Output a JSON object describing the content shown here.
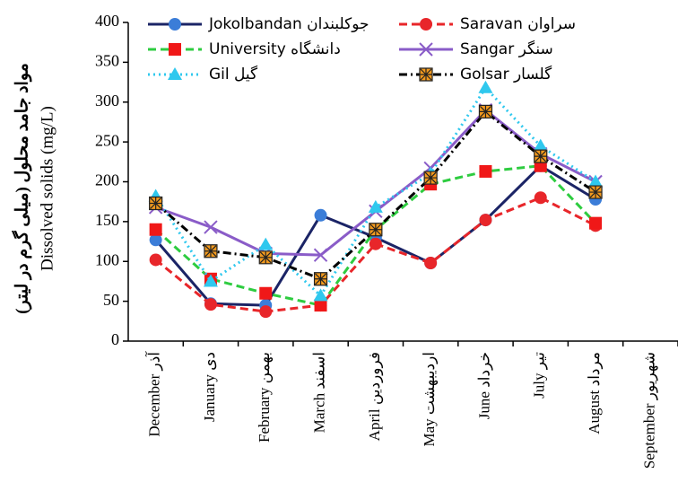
{
  "chart_data": {
    "type": "line",
    "ylabel_fa": "مواد جامد محلول (میلی گرم در لیتر)",
    "ylabel": "Dissolved solids (mg/L)",
    "categories": [
      "December آذر",
      "January دی",
      "February بهمن",
      "March اسفند",
      "April فروردین",
      "May اردیبهشت",
      "June خرداد",
      "July تیر",
      "August مرداد",
      "September شهریور"
    ],
    "ylim": [
      0,
      400
    ],
    "yticks": [
      0,
      50,
      100,
      150,
      200,
      250,
      300,
      350,
      400
    ],
    "series": [
      {
        "name": "Jokolbandan جوکلبندان",
        "color": "#1b2466",
        "marker": "circle",
        "marker_color": "#3b7dd8",
        "dash": "solid",
        "values": [
          127,
          47,
          45,
          158,
          130,
          98,
          152,
          220,
          178,
          null
        ]
      },
      {
        "name": "Saravan سراوان",
        "color": "#e8262a",
        "marker": "circle",
        "marker_color": "#e8262a",
        "dash": "dashed",
        "values": [
          102,
          46,
          37,
          45,
          122,
          98,
          152,
          180,
          145,
          null
        ]
      },
      {
        "name": "University دانشگاه",
        "color": "#2ecc40",
        "marker": "square",
        "marker_color": "#f01818",
        "dash": "dashed",
        "values": [
          140,
          78,
          60,
          45,
          140,
          197,
          213,
          220,
          148,
          null
        ]
      },
      {
        "name": "Sangar سنگر",
        "color": "#8a5cc8",
        "marker": "x",
        "marker_color": "#8a5cc8",
        "dash": "solid",
        "values": [
          168,
          143,
          110,
          108,
          163,
          217,
          290,
          235,
          200,
          null
        ]
      },
      {
        "name": "Gil گیل",
        "color": "#2fc8ee",
        "marker": "triangle",
        "marker_color": "#2fc8ee",
        "dash": "dotted",
        "values": [
          182,
          75,
          121,
          57,
          168,
          210,
          318,
          245,
          200,
          null
        ]
      },
      {
        "name": "Golsar گلسار",
        "color": "#000000",
        "marker": "star",
        "marker_color": "#f39a1e",
        "dash": "dashdot",
        "values": [
          173,
          113,
          105,
          78,
          140,
          205,
          288,
          232,
          187,
          null
        ]
      }
    ]
  }
}
